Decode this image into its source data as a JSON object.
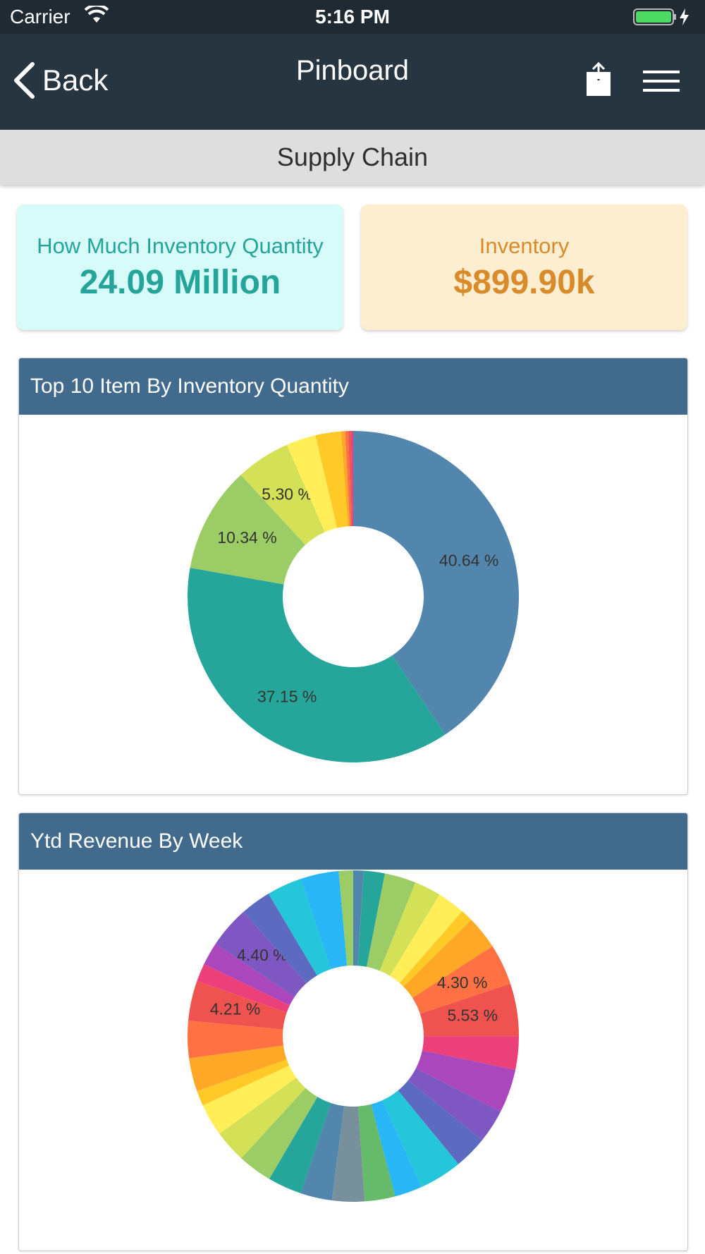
{
  "status_bar": {
    "carrier": "Carrier",
    "time": "5:16 PM",
    "wifi_icon": "wifi-icon",
    "battery_icon": "battery-icon"
  },
  "nav": {
    "back_label": "Back",
    "title": "Pinboard",
    "share_icon": "share-icon",
    "menu_icon": "hamburger-menu-icon"
  },
  "sub_header": {
    "title": "Supply Chain"
  },
  "kpis": [
    {
      "label": "How Much Inventory Quantity",
      "value": "24.09 Million",
      "bg": "#d6fbf8",
      "color": "#25a59a"
    },
    {
      "label": "Inventory",
      "value": "$899.90k",
      "bg": "#fdeed2",
      "color": "#d98b2a"
    }
  ],
  "chart_data": [
    {
      "type": "pie",
      "title": "Top 10 Item By Inventory Quantity",
      "donut": true,
      "slices": [
        {
          "value": 40.64,
          "label": "40.64 %",
          "color": "#5386ac"
        },
        {
          "value": 37.15,
          "label": "37.15 %",
          "color": "#26a69a"
        },
        {
          "value": 10.34,
          "label": "10.34 %",
          "color": "#9ccc65"
        },
        {
          "value": 5.3,
          "label": "5.30 %",
          "color": "#d4e157"
        },
        {
          "value": 2.9,
          "label": "",
          "color": "#ffee58"
        },
        {
          "value": 2.5,
          "label": "",
          "color": "#ffca28"
        },
        {
          "value": 0.4,
          "label": "",
          "color": "#ffa726"
        },
        {
          "value": 0.3,
          "label": "",
          "color": "#ff7043"
        },
        {
          "value": 0.25,
          "label": "",
          "color": "#ef5350"
        },
        {
          "value": 0.22,
          "label": "",
          "color": "#ec407a"
        }
      ]
    },
    {
      "type": "pie",
      "title": "Ytd Revenue By Week",
      "donut": true,
      "slices": [
        {
          "value": 1.1,
          "label": "",
          "color": "#5386ac"
        },
        {
          "value": 2.2,
          "label": "",
          "color": "#26a69a"
        },
        {
          "value": 3.3,
          "label": "",
          "color": "#9ccc65"
        },
        {
          "value": 2.8,
          "label": "",
          "color": "#d4e157"
        },
        {
          "value": 2.9,
          "label": "",
          "color": "#ffee58"
        },
        {
          "value": 1.3,
          "label": "",
          "color": "#ffca28"
        },
        {
          "value": 3.5,
          "label": "",
          "color": "#ffa726"
        },
        {
          "value": 4.3,
          "label": "4.30 %",
          "color": "#ff7043"
        },
        {
          "value": 5.53,
          "label": "5.53 %",
          "color": "#ef5350"
        },
        {
          "value": 3.5,
          "label": "",
          "color": "#ec407a"
        },
        {
          "value": 4.6,
          "label": "",
          "color": "#ab47bc"
        },
        {
          "value": 3.5,
          "label": "",
          "color": "#7e57c2"
        },
        {
          "value": 3.5,
          "label": "",
          "color": "#5c6bc0"
        },
        {
          "value": 4.5,
          "label": "",
          "color": "#26c6da"
        },
        {
          "value": 2.9,
          "label": "",
          "color": "#29b6f6"
        },
        {
          "value": 3.2,
          "label": "",
          "color": "#66bb6a"
        },
        {
          "value": 3.4,
          "label": "",
          "color": "#78909c"
        },
        {
          "value": 3.3,
          "label": "",
          "color": "#5386ac"
        },
        {
          "value": 3.6,
          "label": "",
          "color": "#26a69a"
        },
        {
          "value": 3.6,
          "label": "",
          "color": "#9ccc65"
        },
        {
          "value": 3.4,
          "label": "",
          "color": "#d4e157"
        },
        {
          "value": 3.4,
          "label": "",
          "color": "#ffee58"
        },
        {
          "value": 1.6,
          "label": "",
          "color": "#ffca28"
        },
        {
          "value": 3.5,
          "label": "",
          "color": "#ffa726"
        },
        {
          "value": 3.9,
          "label": "",
          "color": "#ff7043"
        },
        {
          "value": 4.21,
          "label": "4.21 %",
          "color": "#ef5350"
        },
        {
          "value": 1.9,
          "label": "",
          "color": "#ec407a"
        },
        {
          "value": 2.4,
          "label": "",
          "color": "#ab47bc"
        },
        {
          "value": 4.4,
          "label": "4.40 %",
          "color": "#7e57c2"
        },
        {
          "value": 3.2,
          "label": "",
          "color": "#5c6bc0"
        },
        {
          "value": 3.7,
          "label": "",
          "color": "#26c6da"
        },
        {
          "value": 4.0,
          "label": "",
          "color": "#29b6f6"
        },
        {
          "value": 1.5,
          "label": "",
          "color": "#9ccc65"
        }
      ]
    }
  ]
}
